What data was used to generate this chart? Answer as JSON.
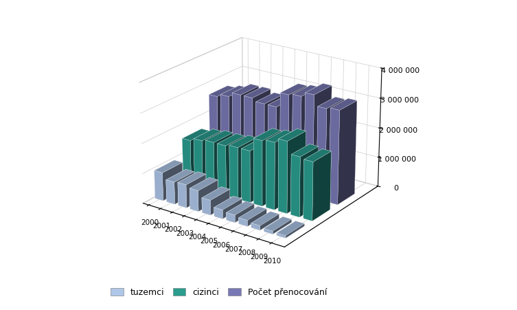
{
  "years": [
    2000,
    2001,
    2002,
    2003,
    2004,
    2005,
    2006,
    2007,
    2008,
    2009,
    2010
  ],
  "tuzemci": [
    950000,
    750000,
    780000,
    700000,
    500000,
    300000,
    250000,
    200000,
    150000,
    100000,
    80000
  ],
  "cizinci": [
    1550000,
    1650000,
    1700000,
    1700000,
    1750000,
    1750000,
    2200000,
    2250000,
    2400000,
    2000000,
    1950000
  ],
  "pocet_prenocovani": [
    2600000,
    2700000,
    2850000,
    2850000,
    2750000,
    2750000,
    3250000,
    3300000,
    3450000,
    3100000,
    3150000
  ],
  "series_labels": [
    "tuzemci",
    "cizinci",
    "Počet přenocování"
  ],
  "colors": [
    "#aec6e8",
    "#2a9d8f",
    "#7878b4"
  ],
  "ylim": [
    0,
    4000000
  ],
  "yticks": [
    0,
    1000000,
    2000000,
    3000000,
    4000000
  ],
  "ytick_labels": [
    "0",
    "1 000 000",
    "2 000 000",
    "3 000 000",
    "4 000 000"
  ],
  "background_color": "#ffffff",
  "elev": 22,
  "azim": -55
}
